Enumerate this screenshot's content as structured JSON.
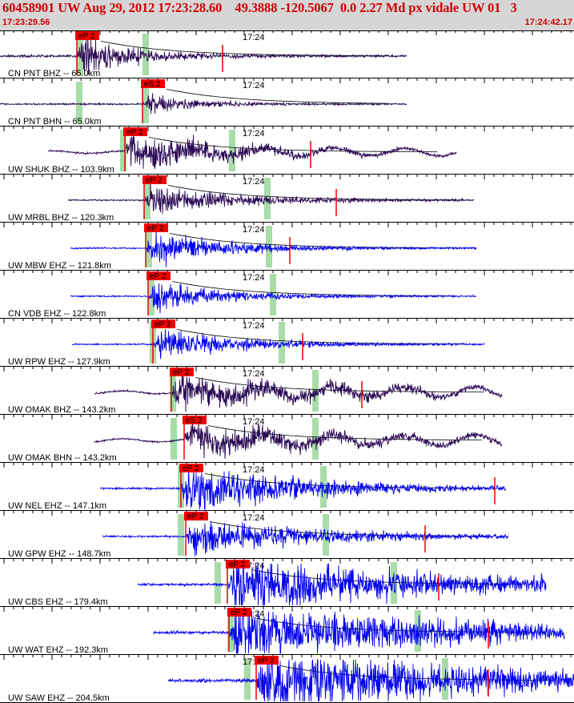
{
  "header": {
    "title": "60458901 UW Aug 29, 2012 17:23:28.60    49.3888 -120.5067  0.0 2.27 Md px vidale UW 01   3",
    "start_time": "17:23:29.56",
    "end_time": "17:24:42.17",
    "title_color": "#d00000"
  },
  "minute_label": "17:24",
  "colors": {
    "trace_dark": "#2a0a55",
    "trace_blue": "#0000ee",
    "pick_red": "#ee0000",
    "window_green": "#a8dca8",
    "tick": "#000000"
  },
  "traces": [
    {
      "label": "CN PNT BHZ -- 65.0km",
      "color": "trace_dark",
      "pick": "eP 2"
    },
    {
      "label": "CN PNT BHN -- 65.0km",
      "color": "trace_dark",
      "pick": "eS 2"
    },
    {
      "label": "UW SHUK BHZ -- 103.9km",
      "color": "trace_dark",
      "pick": "eP 2"
    },
    {
      "label": "UW MRBL BHZ -- 120.3km",
      "color": "trace_dark",
      "pick": "eP 2"
    },
    {
      "label": "UW MBW EHZ -- 121.8km",
      "color": "trace_blue",
      "pick": "eP 2"
    },
    {
      "label": "CN VDB EHZ -- 122.8km",
      "color": "trace_blue",
      "pick": "eP 2"
    },
    {
      "label": "UW RPW EHZ -- 127.9km",
      "color": "trace_blue",
      "pick": "eP 2"
    },
    {
      "label": "UW OMAK BHZ -- 143.2km",
      "color": "trace_dark",
      "pick": "eP 2"
    },
    {
      "label": "UW OMAK BHN -- 143.2km",
      "color": "trace_dark",
      "pick": "eS 2"
    },
    {
      "label": "UW NEL EHZ -- 147.1km",
      "color": "trace_blue",
      "pick": "eP 2"
    },
    {
      "label": "UW GPW EHZ -- 148.7km",
      "color": "trace_blue",
      "pick": "eP 2"
    },
    {
      "label": "UW CBS EHZ -- 179.4km",
      "color": "trace_blue",
      "pick": "eP 2"
    },
    {
      "label": "UW WAT EHZ -- 192.3km",
      "color": "trace_blue",
      "pick": "eP 2"
    },
    {
      "label": "UW SAW EHZ -- 204.5km",
      "color": "trace_blue",
      "pick": "eP 2"
    }
  ]
}
